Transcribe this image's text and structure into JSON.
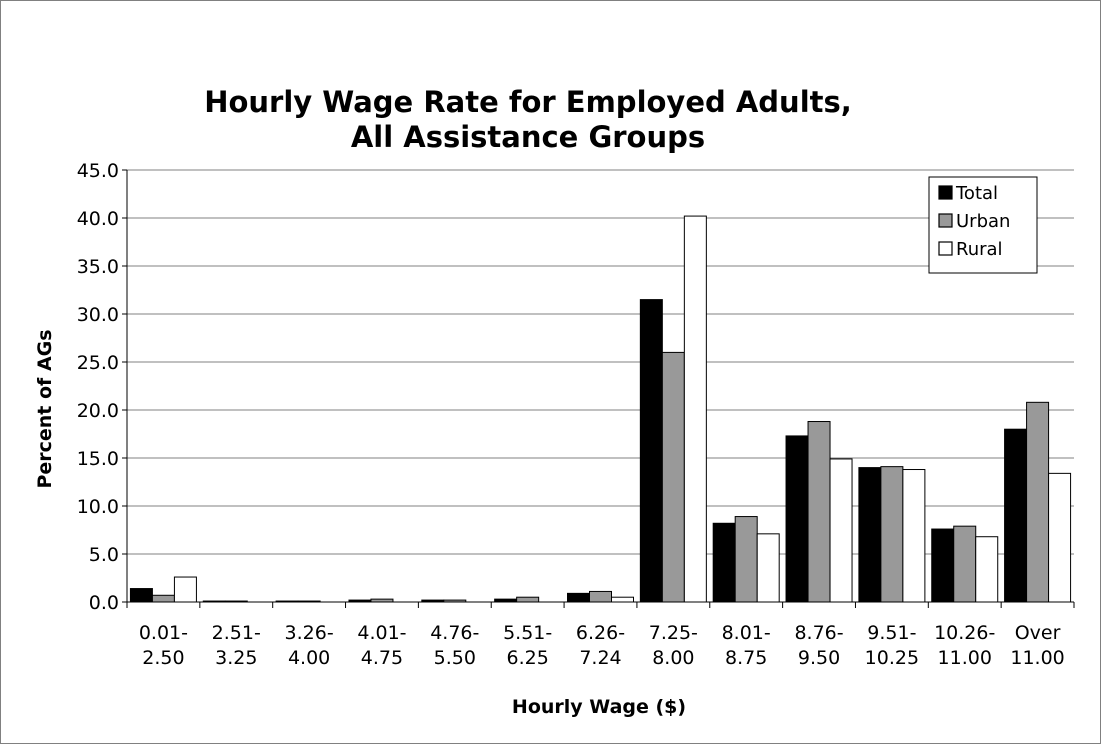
{
  "chart_data": {
    "type": "bar",
    "title": [
      "Hourly Wage Rate for Employed Adults,",
      "All Assistance Groups"
    ],
    "xlabel": "Hourly Wage ($)",
    "ylabel": "Percent of AGs",
    "ylim": [
      0,
      45
    ],
    "yticks": [
      "0.0",
      "5.0",
      "10.0",
      "15.0",
      "20.0",
      "25.0",
      "30.0",
      "35.0",
      "40.0",
      "45.0"
    ],
    "grid": true,
    "legend_position": "top-right",
    "categories": [
      [
        "0.01-",
        "2.50"
      ],
      [
        "2.51-",
        "3.25"
      ],
      [
        "3.26-",
        "4.00"
      ],
      [
        "4.01-",
        "4.75"
      ],
      [
        "4.76-",
        "5.50"
      ],
      [
        "5.51-",
        "6.25"
      ],
      [
        "6.26-",
        "7.24"
      ],
      [
        "7.25-",
        "8.00"
      ],
      [
        "8.01-",
        "8.75"
      ],
      [
        "8.76-",
        "9.50"
      ],
      [
        "9.51-",
        "10.25"
      ],
      [
        "10.26-",
        "11.00"
      ],
      [
        "Over",
        "11.00"
      ]
    ],
    "series": [
      {
        "name": "Total",
        "color": "#000000",
        "values": [
          1.4,
          0.1,
          0.1,
          0.2,
          0.2,
          0.3,
          0.9,
          31.5,
          8.2,
          17.3,
          14.0,
          7.6,
          18.0
        ]
      },
      {
        "name": "Urban",
        "color": "#999999",
        "values": [
          0.7,
          0.1,
          0.1,
          0.3,
          0.2,
          0.5,
          1.1,
          26.0,
          8.9,
          18.8,
          14.1,
          7.9,
          20.8
        ]
      },
      {
        "name": "Rural",
        "color": "#ffffff",
        "values": [
          2.6,
          0.0,
          0.0,
          0.0,
          0.0,
          0.0,
          0.5,
          40.2,
          7.1,
          14.9,
          13.8,
          6.8,
          13.4
        ]
      }
    ]
  }
}
